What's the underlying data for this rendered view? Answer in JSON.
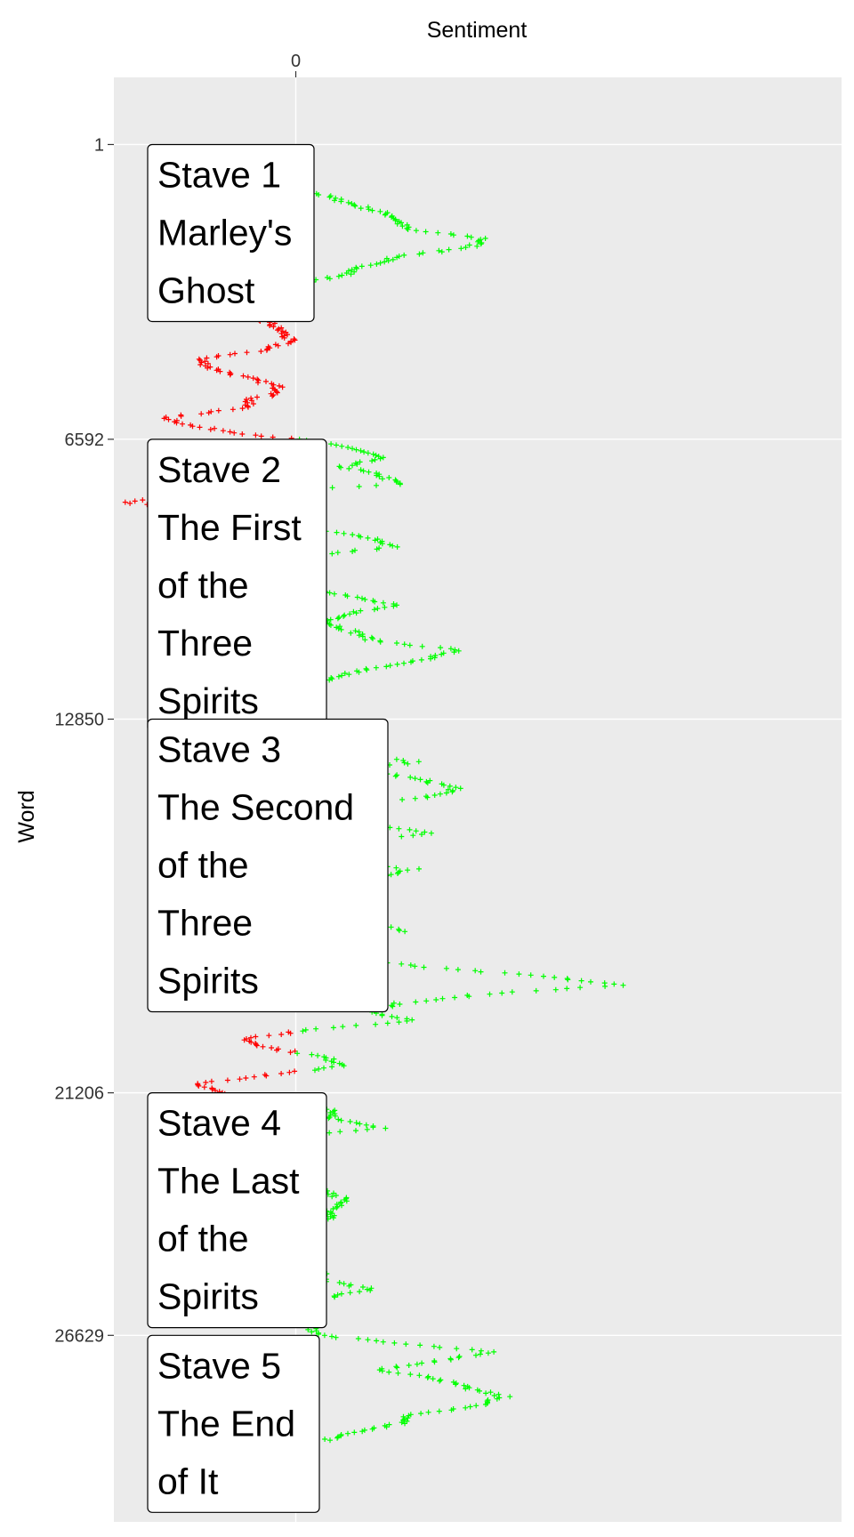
{
  "chart_data": {
    "type": "scatter",
    "title": "",
    "xlabel": "Sentiment",
    "ylabel": "Word",
    "x_axis_position": "top",
    "y_axis_reversed": true,
    "xticks": [
      "0"
    ],
    "yticks": [
      {
        "value": 1,
        "label": "1"
      },
      {
        "value": 6592,
        "label": "6592"
      },
      {
        "value": 12850,
        "label": "12850"
      },
      {
        "value": 21206,
        "label": "21206"
      },
      {
        "value": 26629,
        "label": "26629"
      }
    ],
    "xlim": [
      -140,
      420
    ],
    "ylim": [
      -1500,
      30800
    ],
    "grid": true,
    "colors": {
      "positive": "#00ff00",
      "negative": "#ff0000",
      "panel": "#ebebeb",
      "grid": "#ffffff"
    },
    "marker": "+",
    "staves": [
      {
        "word": 1,
        "lines": [
          "Stave 1",
          "Marley's",
          "Ghost"
        ]
      },
      {
        "word": 6592,
        "lines": [
          "Stave 2",
          "The First",
          "of the",
          "Three",
          "Spirits"
        ]
      },
      {
        "word": 12850,
        "lines": [
          "Stave 3",
          "The Second",
          "of the",
          "Three",
          "Spirits"
        ]
      },
      {
        "word": 21206,
        "lines": [
          "Stave 4",
          "The Last",
          "of the",
          "Spirits"
        ]
      },
      {
        "word": 26629,
        "lines": [
          "Stave 5",
          "The End",
          "of It"
        ]
      }
    ],
    "series": [
      {
        "description_of_points": "word index and cumulative sentiment score",
        "points": [
          [
            200,
            -55
          ],
          [
            400,
            -35
          ],
          [
            600,
            -20
          ],
          [
            800,
            -5
          ],
          [
            1000,
            5
          ],
          [
            1300,
            40
          ],
          [
            1600,
            75
          ],
          [
            1900,
            85
          ],
          [
            2100,
            145
          ],
          [
            2300,
            135
          ],
          [
            2500,
            80
          ],
          [
            2700,
            55
          ],
          [
            2900,
            40
          ],
          [
            3100,
            5
          ],
          [
            3300,
            -35
          ],
          [
            3500,
            -55
          ],
          [
            3700,
            -60
          ],
          [
            3850,
            -35
          ],
          [
            4000,
            -20
          ],
          [
            4200,
            -10
          ],
          [
            4400,
            -5
          ],
          [
            4600,
            -25
          ],
          [
            4800,
            -75
          ],
          [
            5000,
            -65
          ],
          [
            5200,
            -40
          ],
          [
            5400,
            -15
          ],
          [
            5550,
            -10
          ],
          [
            5700,
            -35
          ],
          [
            5900,
            -40
          ],
          [
            6100,
            -100
          ],
          [
            6300,
            -80
          ],
          [
            6500,
            -30
          ],
          [
            6592,
            0
          ],
          [
            6800,
            45
          ],
          [
            7000,
            65
          ],
          [
            7200,
            35
          ],
          [
            7400,
            65
          ],
          [
            7600,
            80
          ],
          [
            7800,
            -60
          ],
          [
            8000,
            -135
          ],
          [
            8200,
            -45
          ],
          [
            8400,
            -20
          ],
          [
            8600,
            10
          ],
          [
            8800,
            60
          ],
          [
            9000,
            75
          ],
          [
            9150,
            25
          ],
          [
            9300,
            -40
          ],
          [
            9500,
            -45
          ],
          [
            9700,
            10
          ],
          [
            9900,
            15
          ],
          [
            10100,
            40
          ],
          [
            10300,
            75
          ],
          [
            10500,
            40
          ],
          [
            10700,
            25
          ],
          [
            10900,
            45
          ],
          [
            11100,
            60
          ],
          [
            11300,
            125
          ],
          [
            11500,
            100
          ],
          [
            11700,
            60
          ],
          [
            11900,
            30
          ],
          [
            12100,
            10
          ],
          [
            12300,
            -20
          ],
          [
            12500,
            -55
          ],
          [
            12700,
            -15
          ],
          [
            12850,
            0
          ],
          [
            13000,
            40
          ],
          [
            13200,
            15
          ],
          [
            13400,
            10
          ],
          [
            13600,
            25
          ],
          [
            13800,
            90
          ],
          [
            14000,
            55
          ],
          [
            14200,
            95
          ],
          [
            14400,
            125
          ],
          [
            14600,
            100
          ],
          [
            14800,
            30
          ],
          [
            15000,
            70
          ],
          [
            15200,
            55
          ],
          [
            15400,
            105
          ],
          [
            15600,
            30
          ],
          [
            15800,
            10
          ],
          [
            16000,
            25
          ],
          [
            16200,
            90
          ],
          [
            16400,
            60
          ],
          [
            16600,
            30
          ],
          [
            16800,
            -10
          ],
          [
            17000,
            15
          ],
          [
            17200,
            55
          ],
          [
            17400,
            60
          ],
          [
            17600,
            80
          ],
          [
            17800,
            -40
          ],
          [
            18000,
            -20
          ],
          [
            18200,
            40
          ],
          [
            18400,
            100
          ],
          [
            18600,
            190
          ],
          [
            18800,
            250
          ],
          [
            19000,
            145
          ],
          [
            19200,
            80
          ],
          [
            19400,
            60
          ],
          [
            19600,
            90
          ],
          [
            19800,
            10
          ],
          [
            20000,
            -40
          ],
          [
            20200,
            -20
          ],
          [
            20400,
            20
          ],
          [
            20600,
            40
          ],
          [
            20800,
            -20
          ],
          [
            21000,
            -75
          ],
          [
            21206,
            -60
          ],
          [
            21400,
            -20
          ],
          [
            21600,
            30
          ],
          [
            21800,
            30
          ],
          [
            22000,
            65
          ],
          [
            22200,
            -5
          ],
          [
            22400,
            -25
          ],
          [
            22600,
            -55
          ],
          [
            22800,
            -55
          ],
          [
            23000,
            -35
          ],
          [
            23200,
            10
          ],
          [
            23400,
            20
          ],
          [
            23600,
            40
          ],
          [
            23800,
            25
          ],
          [
            24000,
            30
          ],
          [
            24200,
            -20
          ],
          [
            24400,
            -35
          ],
          [
            24600,
            -55
          ],
          [
            24800,
            -50
          ],
          [
            25000,
            -25
          ],
          [
            25200,
            20
          ],
          [
            25400,
            20
          ],
          [
            25600,
            60
          ],
          [
            25800,
            20
          ],
          [
            26000,
            -10
          ],
          [
            26200,
            -25
          ],
          [
            26400,
            10
          ],
          [
            26629,
            20
          ],
          [
            26800,
            75
          ],
          [
            27000,
            150
          ],
          [
            27200,
            110
          ],
          [
            27400,
            65
          ],
          [
            27600,
            110
          ],
          [
            27800,
            130
          ],
          [
            28000,
            160
          ],
          [
            28200,
            140
          ],
          [
            28400,
            90
          ],
          [
            28600,
            80
          ],
          [
            28800,
            45
          ],
          [
            29000,
            20
          ]
        ]
      }
    ]
  }
}
